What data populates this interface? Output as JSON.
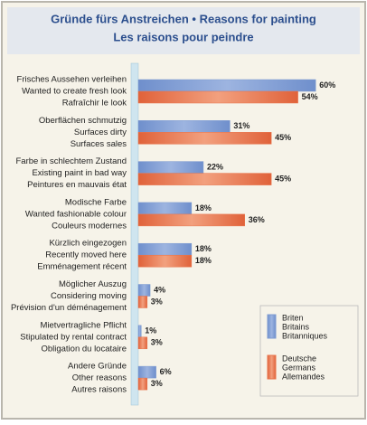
{
  "chart_data": {
    "type": "bar",
    "orientation": "horizontal",
    "title": "Gründe fürs Anstreichen • Reasons for painting",
    "subtitle": "Les raisons pour peindre",
    "categories": [
      [
        "Frisches Aussehen verleihen",
        "Wanted to create fresh look",
        "Rafraîchir le look"
      ],
      [
        "Oberflächen schmutzig",
        "Surfaces dirty",
        "Surfaces sales"
      ],
      [
        "Farbe in schlechtem Zustand",
        "Existing paint in bad way",
        "Peintures en mauvais état"
      ],
      [
        "Modische Farbe",
        "Wanted fashionable colour",
        "Couleurs modernes"
      ],
      [
        "Kürzlich eingezogen",
        "Recently moved here",
        "Emménagement récent"
      ],
      [
        "Möglicher Auszug",
        "Considering moving",
        "Prévision d'un déménagement"
      ],
      [
        "Mietvertragliche Pflicht",
        "Stipulated by rental contract",
        "Obligation du locataire"
      ],
      [
        "Andere Gründe",
        "Other reasons",
        "Autres raisons"
      ]
    ],
    "series": [
      {
        "name": [
          "Briten",
          "Britains",
          "Britanniques"
        ],
        "color": "#7d9bd1",
        "values": [
          60,
          31,
          22,
          18,
          18,
          4,
          1,
          6
        ],
        "value_labels": [
          "60%",
          "31%",
          "22%",
          "18%",
          "18%",
          "4%",
          "1%",
          "6%"
        ]
      },
      {
        "name": [
          "Deutsche",
          "Germans",
          "Allemandes"
        ],
        "color": "#e8734a",
        "values": [
          54,
          45,
          45,
          36,
          18,
          3,
          3,
          3
        ],
        "value_labels": [
          "54%",
          "45%",
          "45%",
          "36%",
          "18%",
          "3%",
          "3%",
          "3%"
        ]
      }
    ]
  }
}
